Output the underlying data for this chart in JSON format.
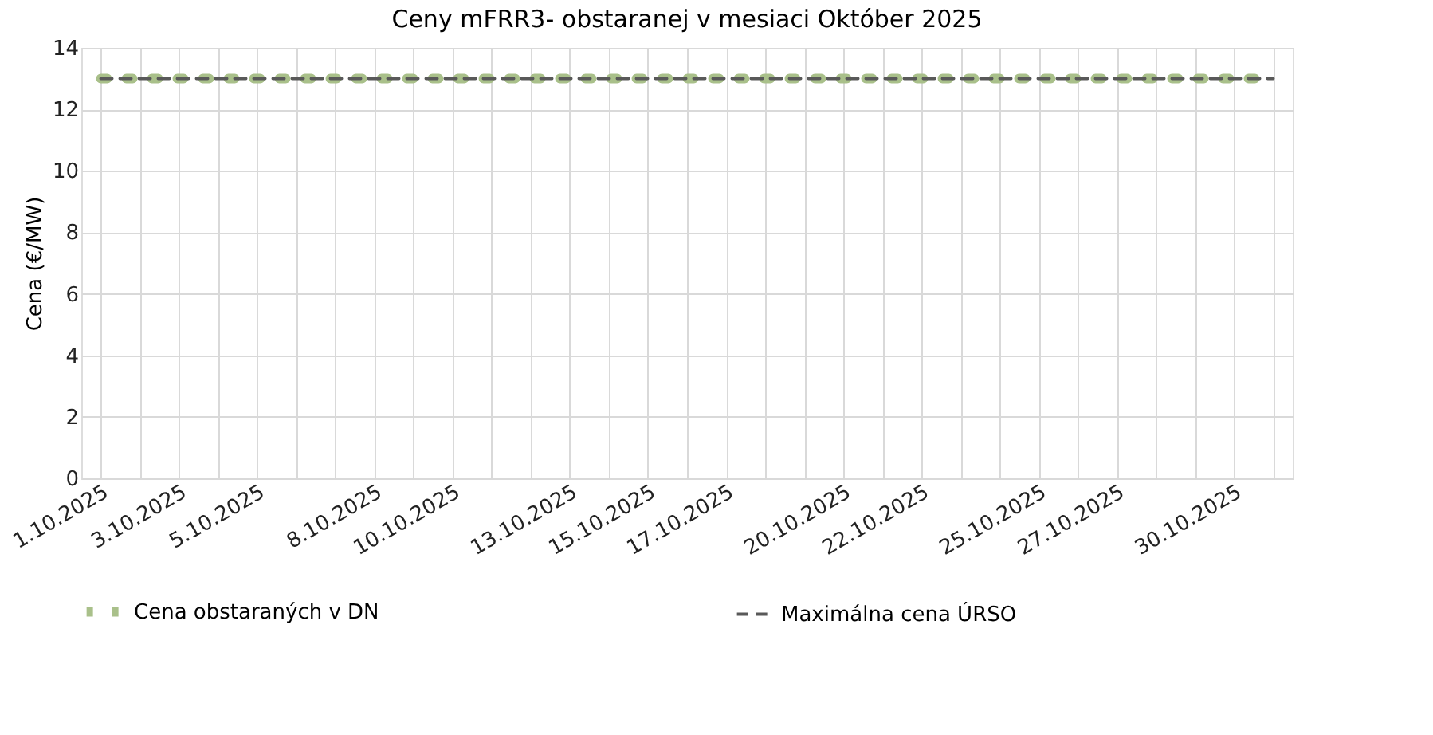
{
  "chart_data": {
    "type": "line",
    "title": "Ceny mFRR3- obstaranej v mesiaci Október 2025",
    "ylabel": "Cena (€/MW)",
    "categories": [
      "1.10.2025",
      null,
      "3.10.2025",
      null,
      "5.10.2025",
      null,
      null,
      "8.10.2025",
      null,
      "10.10.2025",
      null,
      null,
      "13.10.2025",
      null,
      "15.10.2025",
      null,
      "17.10.2025",
      null,
      null,
      "20.10.2025",
      null,
      "22.10.2025",
      null,
      null,
      "25.10.2025",
      null,
      "27.10.2025",
      null,
      null,
      "30.10.2025",
      null
    ],
    "series": [
      {
        "name": "Cena obstaraných v DN",
        "color": "#a9c08a",
        "line_style": "dotted",
        "values": [
          13,
          13,
          13,
          13,
          13,
          13,
          13,
          13,
          13,
          13,
          13,
          13,
          13,
          13,
          13,
          13,
          13,
          13,
          13,
          13,
          13,
          13,
          13,
          13,
          13,
          13,
          13,
          13,
          13,
          13,
          13
        ]
      },
      {
        "name": "Maximálna cena ÚRSO",
        "color": "#595959",
        "line_style": "dashed",
        "values": [
          13,
          13,
          13,
          13,
          13,
          13,
          13,
          13,
          13,
          13,
          13,
          13,
          13,
          13,
          13,
          13,
          13,
          13,
          13,
          13,
          13,
          13,
          13,
          13,
          13,
          13,
          13,
          13,
          13,
          13,
          13
        ]
      }
    ],
    "ylim": [
      0,
      14
    ],
    "yticks": [
      0,
      2,
      4,
      6,
      8,
      10,
      12,
      14
    ],
    "grid": true,
    "legend": "bottom"
  }
}
